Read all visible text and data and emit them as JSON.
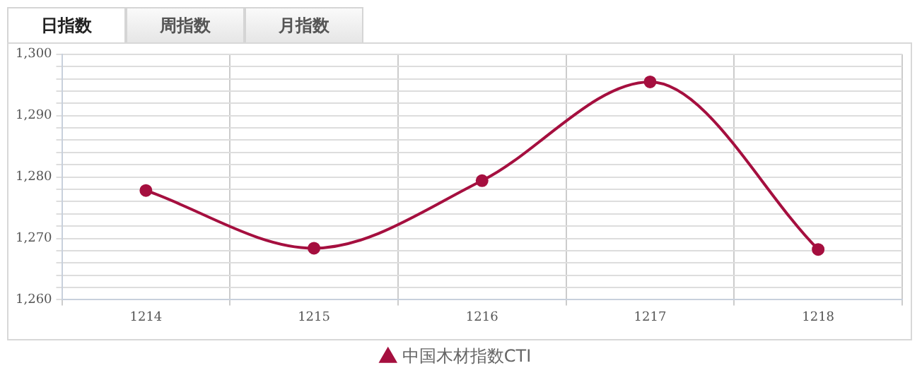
{
  "chart_data": {
    "type": "line",
    "annotations": [
      "日指数",
      "周指数",
      "月指数"
    ],
    "categories": [
      "1214",
      "1215",
      "1216",
      "1217",
      "1218"
    ],
    "series": [
      {
        "name": "中国木材指数CTI",
        "color": "#a50f3f",
        "values": [
          1277.8,
          1268.4,
          1279.4,
          1295.5,
          1268.2
        ]
      }
    ],
    "ylim": [
      1260,
      1300
    ],
    "yticks": [
      {
        "value": 1260,
        "label": "1,260"
      },
      {
        "value": 1262,
        "label": null
      },
      {
        "value": 1264,
        "label": null
      },
      {
        "value": 1266,
        "label": null
      },
      {
        "value": 1268,
        "label": null
      },
      {
        "value": 1270,
        "label": "1,270"
      },
      {
        "value": 1272,
        "label": null
      },
      {
        "value": 1274,
        "label": null
      },
      {
        "value": 1276,
        "label": null
      },
      {
        "value": 1278,
        "label": null
      },
      {
        "value": 1280,
        "label": "1,280"
      },
      {
        "value": 1282,
        "label": null
      },
      {
        "value": 1284,
        "label": null
      },
      {
        "value": 1286,
        "label": null
      },
      {
        "value": 1288,
        "label": null
      },
      {
        "value": 1290,
        "label": "1,290"
      },
      {
        "value": 1292,
        "label": null
      },
      {
        "value": 1294,
        "label": null
      },
      {
        "value": 1296,
        "label": null
      },
      {
        "value": 1298,
        "label": null
      },
      {
        "value": 1300,
        "label": "1,300"
      }
    ],
    "grid": true,
    "legend": "bottom",
    "marker": "circle",
    "line_style": "solid"
  }
}
